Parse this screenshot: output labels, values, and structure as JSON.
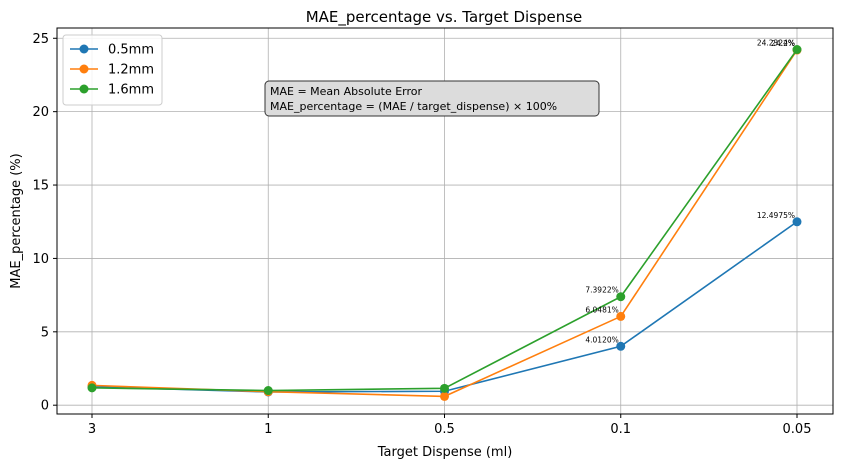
{
  "chart_data": {
    "type": "line",
    "title": "MAE_percentage vs. Target Dispense",
    "xlabel": "Target Dispense (ml)",
    "ylabel": "MAE_percentage (%)",
    "categories": [
      "3",
      "1",
      "0.5",
      "0.1",
      "0.05"
    ],
    "ylim": [
      -0.6,
      25.7
    ],
    "yticks": [
      0,
      5,
      10,
      15,
      20,
      25
    ],
    "grid": true,
    "legend_position": "top-left",
    "annotation": {
      "line1": "MAE = Mean Absolute Error",
      "line2": "MAE_percentage = (MAE / target_dispense) × 100%"
    },
    "series": [
      {
        "name": "0.5mm",
        "color": "#1f77b4",
        "values": [
          1.25,
          0.9,
          0.95,
          4.012,
          12.4975
        ],
        "point_labels": [
          null,
          null,
          null,
          "4.0120%",
          "12.4975%"
        ]
      },
      {
        "name": "1.2mm",
        "color": "#ff7f0e",
        "values": [
          1.35,
          0.92,
          0.6,
          6.0481,
          24.2
        ],
        "point_labels": [
          null,
          null,
          null,
          "6.0481%",
          "24.2%"
        ]
      },
      {
        "name": "1.6mm",
        "color": "#2ca02c",
        "values": [
          1.18,
          1.0,
          1.15,
          7.3922,
          24.2324
        ],
        "point_labels": [
          null,
          null,
          null,
          "7.3922%",
          "24.2324%"
        ]
      }
    ]
  }
}
